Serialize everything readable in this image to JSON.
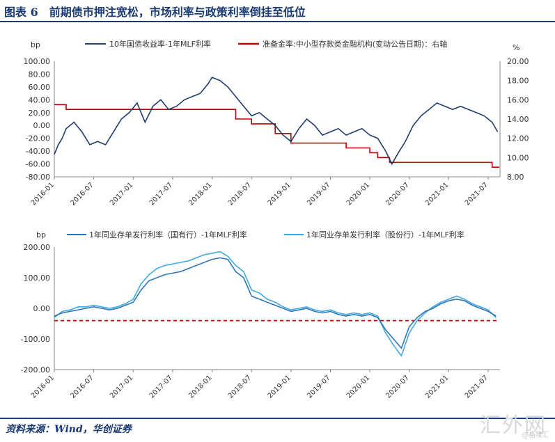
{
  "header": {
    "title": "图表 6　前期债市押注宽松，市场利率与政策利率倒挂至低位"
  },
  "footer": {
    "source": "资料来源：Wind，华创证券"
  },
  "watermark": {
    "text": "汇外网",
    "sub": "@格隆汇"
  },
  "colors": {
    "brand": "#1a3a73",
    "navy": "#1f3a6e",
    "red": "#c00000",
    "blue1": "#2e75b6",
    "blue2": "#3fa9e0",
    "dashed": "#c00000"
  },
  "chart_data": [
    {
      "type": "line",
      "ylabel_left": "bp",
      "ylabel_right": "%",
      "ylim_left": [
        -80,
        100
      ],
      "ylim_right": [
        8,
        20
      ],
      "yticks_left": [
        "100.00",
        "80.00",
        "60.00",
        "40.00",
        "20.00",
        "0.00",
        "-20.00",
        "-40.00",
        "-60.00",
        "-80.00"
      ],
      "yticks_right": [
        "20.00",
        "18.00",
        "16.00",
        "14.00",
        "12.00",
        "10.00",
        "8.00"
      ],
      "xticks": [
        "2016-01",
        "2016-07",
        "2017-01",
        "2017-07",
        "2018-01",
        "2018-07",
        "2019-01",
        "2019-07",
        "2020-01",
        "2020-07",
        "2021-01",
        "2021-07"
      ],
      "legend": [
        "10年国债收益率-1年MLF利率",
        "准备金率:中小型存款类金融机构(变动公告日期)：右轴"
      ],
      "series": [
        {
          "name": "10年国债收益率-1年MLF利率",
          "axis": "left",
          "color": "#1f3a6e",
          "x": [
            2016.0,
            2016.05,
            2016.1,
            2016.15,
            2016.25,
            2016.35,
            2016.45,
            2016.55,
            2016.65,
            2016.75,
            2016.85,
            2016.95,
            2017.05,
            2017.15,
            2017.25,
            2017.35,
            2017.45,
            2017.55,
            2017.65,
            2017.75,
            2017.85,
            2017.95,
            2018.0,
            2018.1,
            2018.2,
            2018.3,
            2018.4,
            2018.5,
            2018.6,
            2018.7,
            2018.8,
            2018.9,
            2019.0,
            2019.1,
            2019.2,
            2019.3,
            2019.4,
            2019.5,
            2019.6,
            2019.7,
            2019.8,
            2019.9,
            2020.0,
            2020.1,
            2020.2,
            2020.28,
            2020.35,
            2020.45,
            2020.55,
            2020.65,
            2020.75,
            2020.85,
            2020.95,
            2021.05,
            2021.15,
            2021.25,
            2021.35,
            2021.45,
            2021.55,
            2021.62
          ],
          "y": [
            -45,
            -30,
            -20,
            -5,
            5,
            -10,
            -30,
            -25,
            -30,
            -10,
            10,
            20,
            35,
            5,
            30,
            40,
            25,
            30,
            40,
            45,
            50,
            65,
            75,
            70,
            60,
            45,
            30,
            15,
            20,
            10,
            0,
            -15,
            -25,
            -5,
            10,
            0,
            -15,
            -10,
            -5,
            -15,
            -10,
            -5,
            -15,
            -20,
            -40,
            -60,
            -45,
            -25,
            0,
            15,
            25,
            35,
            30,
            25,
            30,
            25,
            20,
            15,
            5,
            -10
          ]
        },
        {
          "name": "准备金率:中小型存款类金融机构(变动公告日期)：右轴",
          "axis": "right",
          "color": "#c00000",
          "x": [
            2016.0,
            2016.15,
            2016.15,
            2018.3,
            2018.3,
            2018.5,
            2018.5,
            2018.8,
            2018.8,
            2019.0,
            2019.0,
            2019.7,
            2019.7,
            2020.0,
            2020.0,
            2020.1,
            2020.1,
            2020.25,
            2020.25,
            2021.55,
            2021.55,
            2021.64
          ],
          "y": [
            15.5,
            15.5,
            15.0,
            15.0,
            14.0,
            14.0,
            13.5,
            13.5,
            12.5,
            12.5,
            11.5,
            11.5,
            11.0,
            11.0,
            10.5,
            10.5,
            10.0,
            10.0,
            9.5,
            9.5,
            9.0,
            9.0
          ]
        }
      ]
    },
    {
      "type": "line",
      "ylabel": "bp",
      "ylim": [
        -200,
        200
      ],
      "yticks": [
        "200.00",
        "100.00",
        "0.00",
        "-100.00",
        "-200.00"
      ],
      "xticks": [
        "2016-01",
        "2016-07",
        "2017-01",
        "2017-07",
        "2018-01",
        "2018-07",
        "2019-01",
        "2019-07",
        "2020-01",
        "2020-07",
        "2021-01",
        "2021-07"
      ],
      "legend": [
        "1年同业存单发行利率（国有行）-1年MLF利率",
        "1年同业存单发行利率（股份行）-1年MLF利率"
      ],
      "series": [
        {
          "name": "1年同业存单发行利率（国有行）-1年MLF利率",
          "color": "#2e75b6",
          "x": [
            2016.0,
            2016.1,
            2016.2,
            2016.3,
            2016.4,
            2016.5,
            2016.6,
            2016.7,
            2016.8,
            2016.9,
            2017.0,
            2017.1,
            2017.2,
            2017.3,
            2017.4,
            2017.5,
            2017.6,
            2017.7,
            2017.8,
            2017.9,
            2018.0,
            2018.1,
            2018.2,
            2018.3,
            2018.4,
            2018.5,
            2018.6,
            2018.7,
            2018.8,
            2018.9,
            2019.0,
            2019.1,
            2019.2,
            2019.3,
            2019.4,
            2019.5,
            2019.6,
            2019.7,
            2019.8,
            2019.9,
            2020.0,
            2020.1,
            2020.2,
            2020.3,
            2020.4,
            2020.5,
            2020.6,
            2020.7,
            2020.8,
            2020.9,
            2021.0,
            2021.1,
            2021.2,
            2021.3,
            2021.4,
            2021.5,
            2021.6
          ],
          "y": [
            -25,
            -15,
            -10,
            -5,
            0,
            5,
            0,
            -5,
            0,
            10,
            20,
            60,
            90,
            100,
            110,
            115,
            120,
            130,
            140,
            150,
            160,
            165,
            160,
            120,
            100,
            40,
            30,
            20,
            10,
            0,
            -10,
            -5,
            0,
            -10,
            -15,
            -10,
            -20,
            -25,
            -20,
            -25,
            -20,
            -30,
            -70,
            -100,
            -130,
            -60,
            -30,
            -10,
            0,
            15,
            25,
            30,
            25,
            10,
            0,
            -10,
            -25
          ]
        },
        {
          "name": "1年同业存单发行利率（股份行）-1年MLF利率",
          "color": "#3fa9e0",
          "x": [
            2016.0,
            2016.1,
            2016.2,
            2016.3,
            2016.4,
            2016.5,
            2016.6,
            2016.7,
            2016.8,
            2016.9,
            2017.0,
            2017.1,
            2017.2,
            2017.3,
            2017.4,
            2017.5,
            2017.6,
            2017.7,
            2017.8,
            2017.9,
            2018.0,
            2018.1,
            2018.2,
            2018.3,
            2018.4,
            2018.5,
            2018.6,
            2018.7,
            2018.8,
            2018.9,
            2019.0,
            2019.1,
            2019.2,
            2019.3,
            2019.4,
            2019.5,
            2019.6,
            2019.7,
            2019.8,
            2019.9,
            2020.0,
            2020.1,
            2020.2,
            2020.3,
            2020.4,
            2020.5,
            2020.6,
            2020.7,
            2020.8,
            2020.9,
            2021.0,
            2021.1,
            2021.2,
            2021.3,
            2021.4,
            2021.5,
            2021.6
          ],
          "y": [
            -30,
            -10,
            -5,
            5,
            5,
            10,
            5,
            0,
            5,
            15,
            30,
            80,
            110,
            130,
            140,
            145,
            150,
            155,
            165,
            175,
            180,
            185,
            170,
            140,
            120,
            60,
            50,
            30,
            20,
            5,
            -5,
            0,
            5,
            -5,
            -10,
            -5,
            -15,
            -20,
            -15,
            -20,
            -15,
            -25,
            -80,
            -120,
            -155,
            -80,
            -40,
            -15,
            5,
            20,
            30,
            40,
            30,
            15,
            5,
            -5,
            -30
          ]
        },
        {
          "name": "",
          "color": "#c00000",
          "dashed": true,
          "x": [
            2016.0,
            2021.62
          ],
          "y": [
            -40,
            -40
          ]
        }
      ]
    }
  ]
}
